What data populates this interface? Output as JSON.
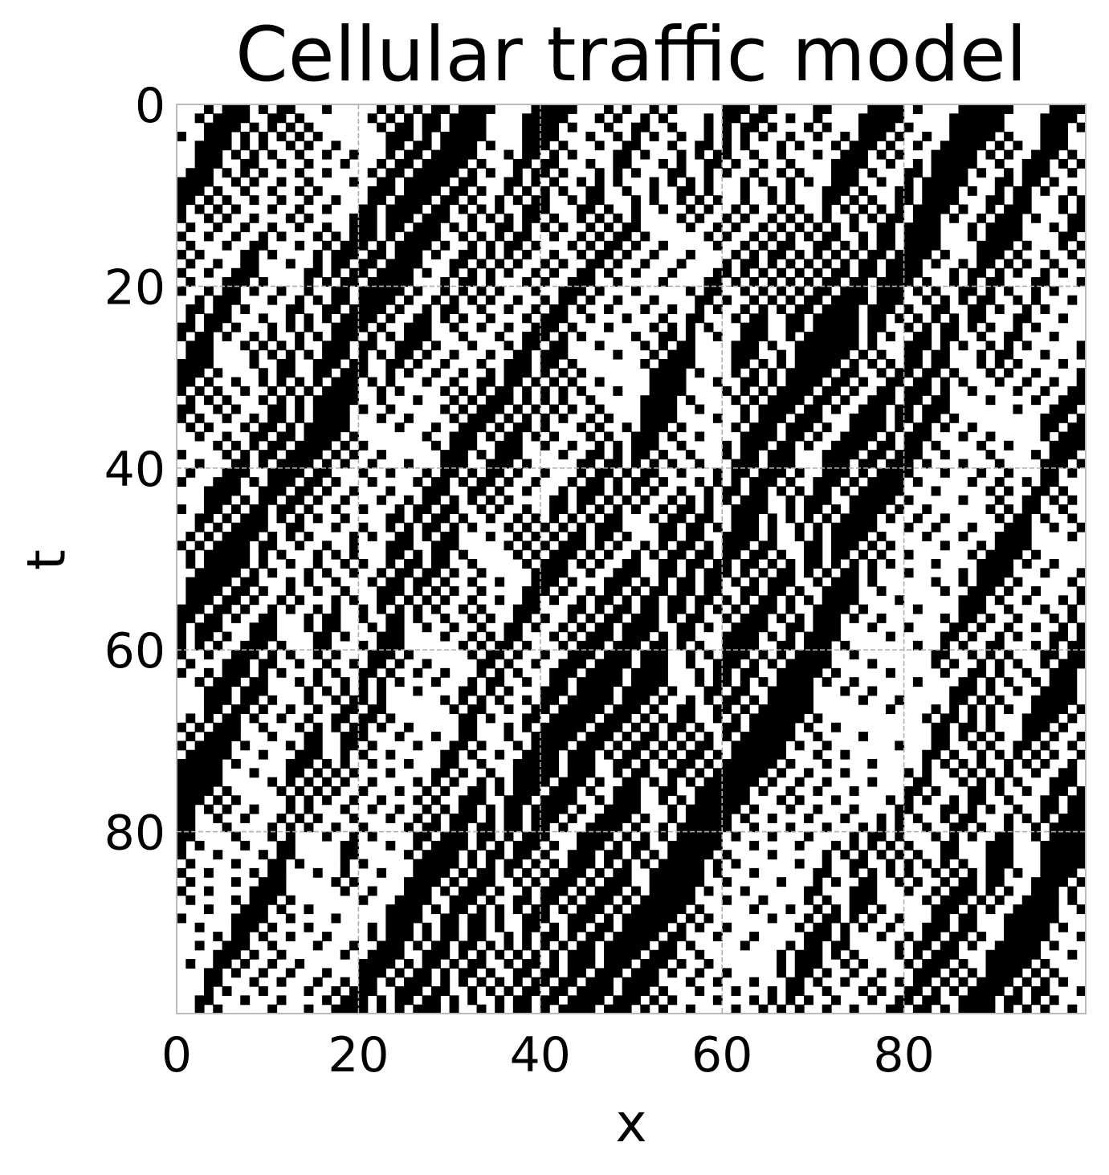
{
  "chart_data": {
    "type": "heatmap",
    "title": "Cellular traffic model",
    "xlabel": "x",
    "ylabel": "t",
    "xlim": [
      0,
      100
    ],
    "ylim": [
      100,
      0
    ],
    "xticks": [
      "0",
      "20",
      "40",
      "60",
      "80"
    ],
    "yticks": [
      "0",
      "20",
      "40",
      "60",
      "80"
    ],
    "grid": true,
    "colormap": {
      "occupied": "#000000",
      "empty": "#ffffff"
    },
    "grid_size": {
      "x_cells": 100,
      "t_steps": 100
    },
    "pattern": "car occupancy bands drifting downward-right over time (black = car present)"
  }
}
